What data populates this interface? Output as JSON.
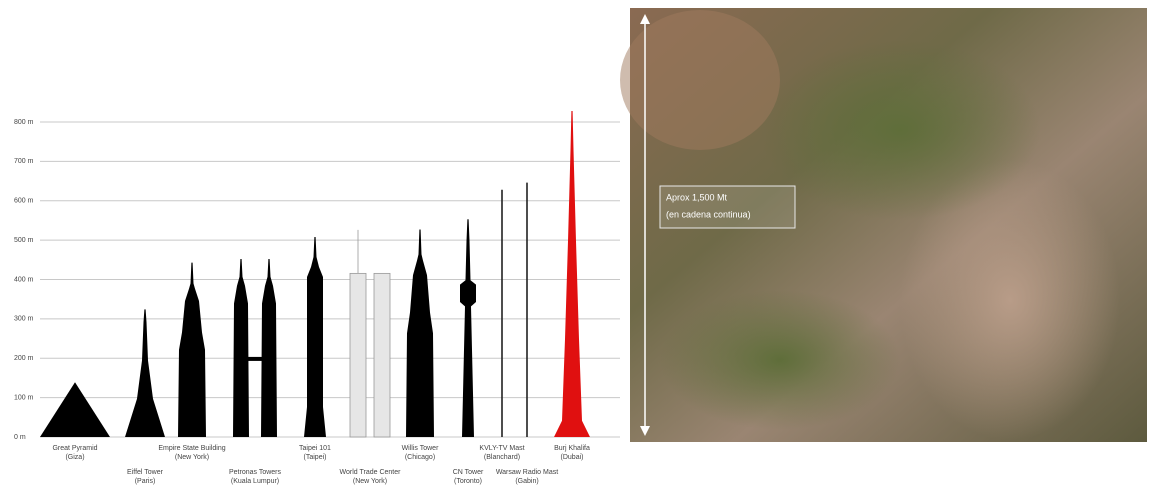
{
  "chart_data": {
    "type": "silhouette",
    "categories": [
      [
        "Great Pyramid",
        "(Giza)"
      ],
      [
        "Eiffel Tower",
        "(Paris)"
      ],
      [
        "Empire State Building",
        "(New York)"
      ],
      [
        "Petronas Towers",
        "(Kuala Lumpur)"
      ],
      [
        "Taipei 101",
        "(Taipei)"
      ],
      [
        "World Trade Center",
        "(New York)"
      ],
      [
        "Willis Tower",
        "(Chicago)"
      ],
      [
        "CN Tower",
        "(Toronto)"
      ],
      [
        "KVLY-TV Mast",
        "(Blanchard)"
      ],
      [
        "Warsaw Radio Mast",
        "(Gabin)"
      ],
      [
        "Burj Khalifa",
        "(Dubai)"
      ]
    ],
    "values": [
      139,
      324,
      443,
      452,
      508,
      526,
      527,
      553,
      628,
      646,
      828
    ],
    "colors": [
      "#000000",
      "#000000",
      "#000000",
      "#000000",
      "#000000",
      "#e6e6e6",
      "#000000",
      "#000000",
      "#000000",
      "#000000",
      "#e01010"
    ],
    "ylim": [
      0,
      800
    ],
    "yticks": [
      {
        "value": 0,
        "label": "0 m"
      },
      {
        "value": 100,
        "label": "100 m"
      },
      {
        "value": 200,
        "label": "200 m"
      },
      {
        "value": 300,
        "label": "300 m"
      },
      {
        "value": 400,
        "label": "400 m"
      },
      {
        "value": 500,
        "label": "500 m"
      },
      {
        "value": 600,
        "label": "600 m"
      },
      {
        "value": 700,
        "label": "700 m"
      },
      {
        "value": 800,
        "label": "800 m"
      }
    ],
    "grid": true,
    "annotation": [
      "Aprox 1,500 Mt",
      "(en cadena continua)"
    ]
  }
}
